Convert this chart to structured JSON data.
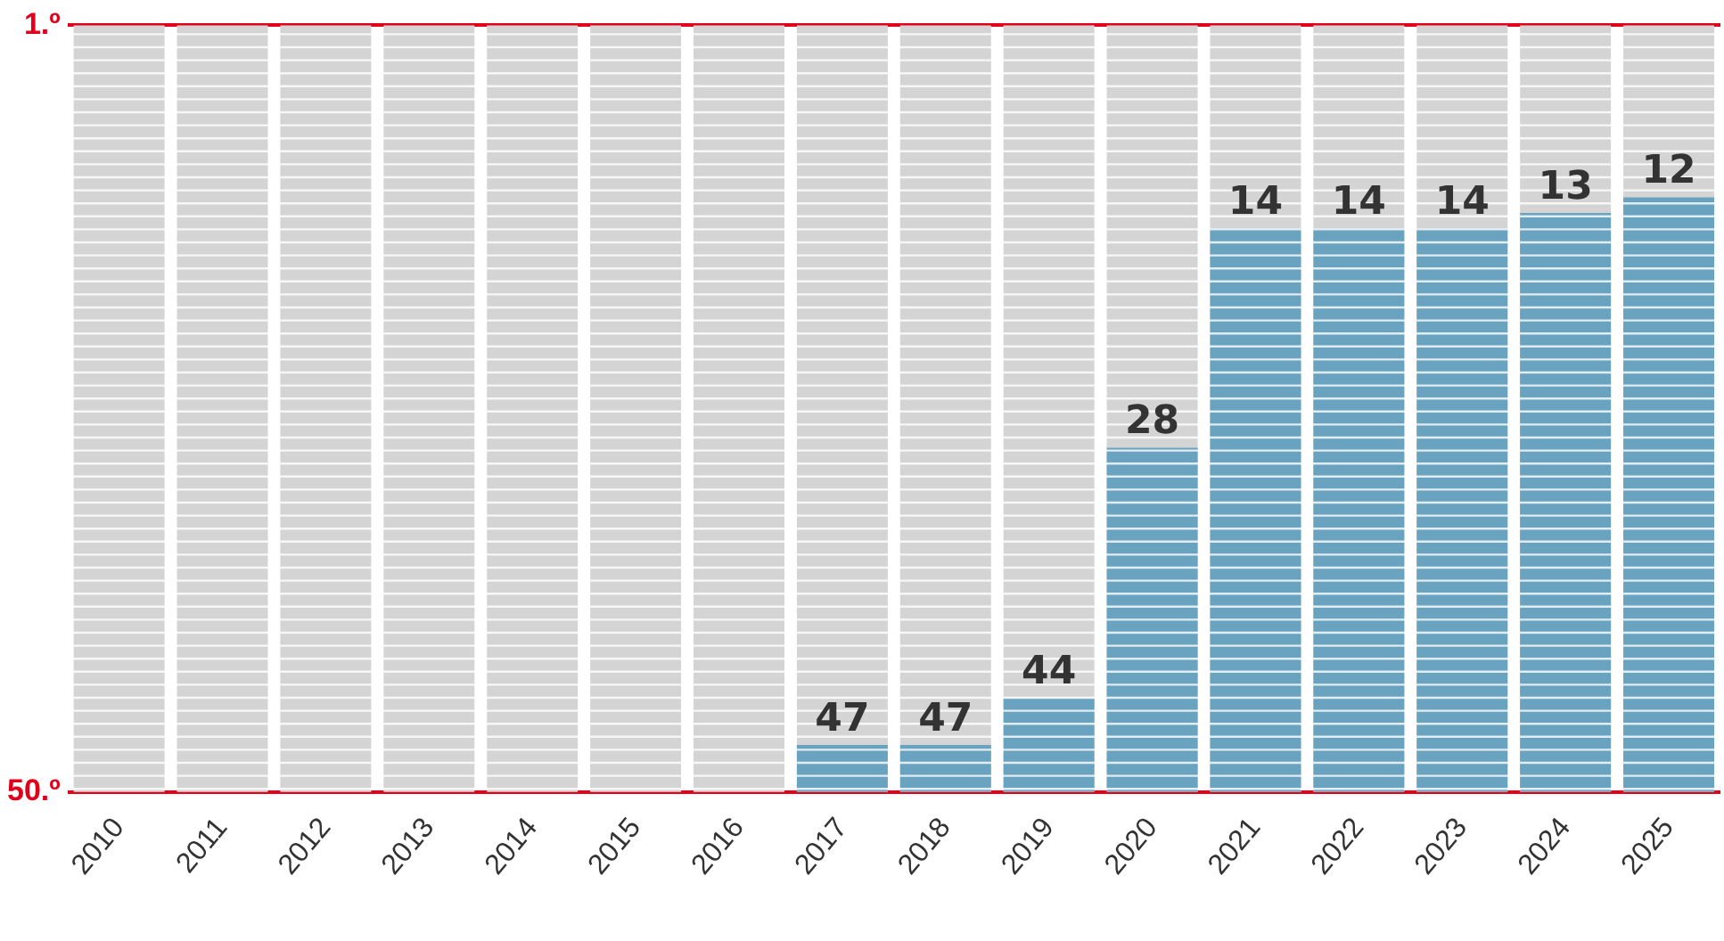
{
  "chart_data": {
    "type": "bar",
    "categories": [
      "2010",
      "2011",
      "2012",
      "2013",
      "2014",
      "2015",
      "2016",
      "2017",
      "2018",
      "2019",
      "2020",
      "2021",
      "2022",
      "2023",
      "2024",
      "2025"
    ],
    "base": [
      null,
      null,
      null,
      null,
      null,
      null,
      null,
      50,
      50,
      50,
      50,
      50,
      50,
      50,
      50,
      50
    ],
    "values": [
      null,
      null,
      null,
      null,
      null,
      null,
      null,
      -3,
      -3,
      -6,
      -22,
      -36,
      -36,
      -36,
      -37,
      -38
    ],
    "value_labels": [
      null,
      null,
      null,
      null,
      null,
      null,
      null,
      "47",
      "47",
      "44",
      "28",
      "14",
      "14",
      "14",
      "13",
      "12"
    ],
    "color": "#6aa3c0",
    "ylim": [
      50,
      1
    ],
    "yticks": [
      {
        "value": 1,
        "label": "1.º"
      },
      {
        "value": 50,
        "label": "50.º"
      }
    ],
    "bands": [
      {
        "axis": "x",
        "from": "2010",
        "to": "2010",
        "color": "#d4d4d4"
      },
      {
        "axis": "x",
        "from": "2011",
        "to": "2011",
        "color": "#d4d4d4"
      },
      {
        "axis": "x",
        "from": "2012",
        "to": "2012",
        "color": "#d4d4d4"
      },
      {
        "axis": "x",
        "from": "2013",
        "to": "2013",
        "color": "#d4d4d4"
      },
      {
        "axis": "x",
        "from": "2014",
        "to": "2014",
        "color": "#d4d4d4"
      },
      {
        "axis": "x",
        "from": "2015",
        "to": "2015",
        "color": "#d4d4d4"
      },
      {
        "axis": "x",
        "from": "2016",
        "to": "2016",
        "color": "#d4d4d4"
      },
      {
        "axis": "x",
        "from": "2017",
        "to": "2017",
        "color": "#d4d4d4"
      },
      {
        "axis": "x",
        "from": "2018",
        "to": "2018",
        "color": "#d4d4d4"
      },
      {
        "axis": "x",
        "from": "2019",
        "to": "2019",
        "color": "#d4d4d4"
      },
      {
        "axis": "x",
        "from": "2020",
        "to": "2020",
        "color": "#d4d4d4"
      },
      {
        "axis": "x",
        "from": "2021",
        "to": "2021",
        "color": "#d4d4d4"
      },
      {
        "axis": "x",
        "from": "2022",
        "to": "2022",
        "color": "#d4d4d4"
      },
      {
        "axis": "x",
        "from": "2023",
        "to": "2023",
        "color": "#d4d4d4"
      },
      {
        "axis": "x",
        "from": "2024",
        "to": "2024",
        "color": "#d4d4d4"
      },
      {
        "axis": "x",
        "from": "2025",
        "to": "2025",
        "color": "#d4d4d4"
      }
    ],
    "grid": "y",
    "legend": false
  }
}
